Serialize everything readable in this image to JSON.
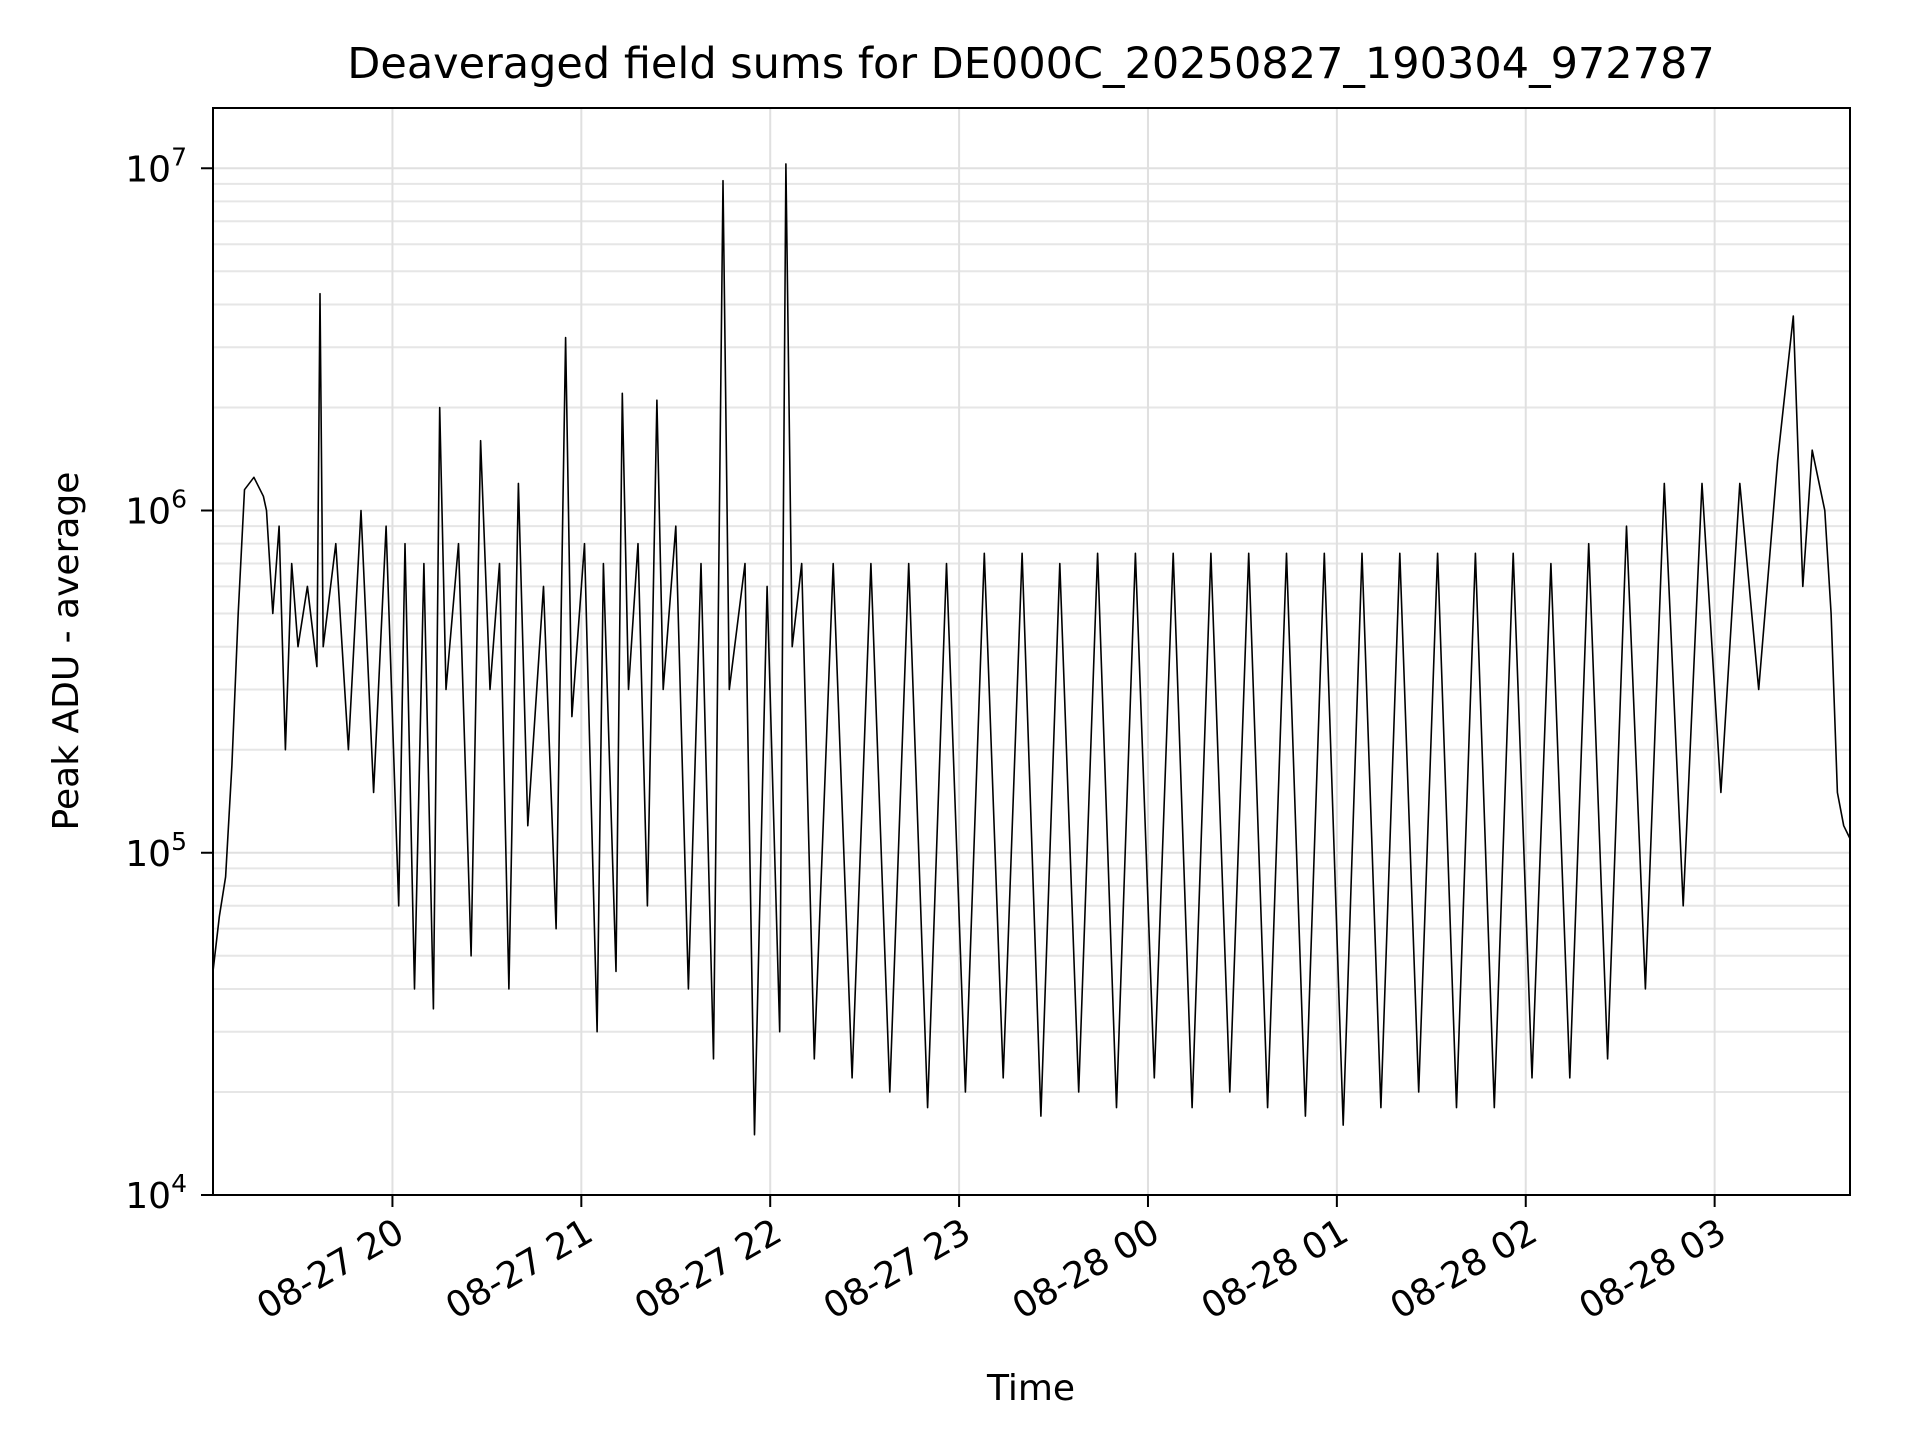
{
  "chart_data": {
    "type": "line",
    "title": "Deaveraged field sums for DE000C_20250827_190304_972787",
    "xlabel": "Time",
    "ylabel": "Peak ADU - average",
    "x_axis": {
      "type": "time",
      "range": [
        "2025-08-27 19:03",
        "2025-08-28 03:43"
      ],
      "ticks": [
        "2025-08-27 20:00",
        "2025-08-27 21:00",
        "2025-08-27 22:00",
        "2025-08-27 23:00",
        "2025-08-28 00:00",
        "2025-08-28 01:00",
        "2025-08-28 02:00",
        "2025-08-28 03:00"
      ],
      "tick_labels": [
        "08-27 20",
        "08-27 21",
        "08-27 22",
        "08-27 23",
        "08-28 00",
        "08-28 01",
        "08-28 02",
        "08-28 03"
      ]
    },
    "y_axis": {
      "scale": "log",
      "range": [
        10000,
        15000000
      ],
      "ticks": [
        10000,
        100000,
        1000000,
        10000000
      ],
      "tick_labels": [
        {
          "base": "10",
          "exp": "4"
        },
        {
          "base": "10",
          "exp": "5"
        },
        {
          "base": "10",
          "exp": "6"
        },
        {
          "base": "10",
          "exp": "7"
        }
      ]
    },
    "grid": true,
    "grid_minor": true,
    "line_color": "#000000",
    "series": [
      {
        "points": [
          [
            "2025-08-27 19:03",
            45000
          ],
          [
            "2025-08-27 19:05",
            65000
          ],
          [
            "2025-08-27 19:07",
            85000
          ],
          [
            "2025-08-27 19:09",
            180000
          ],
          [
            "2025-08-27 19:11",
            500000
          ],
          [
            "2025-08-27 19:13",
            1150000
          ],
          [
            "2025-08-27 19:16",
            1250000
          ],
          [
            "2025-08-27 19:19",
            1100000
          ],
          [
            "2025-08-27 19:20",
            1000000
          ],
          [
            "2025-08-27 19:22",
            500000
          ],
          [
            "2025-08-27 19:24",
            900000
          ],
          [
            "2025-08-27 19:26",
            200000
          ],
          [
            "2025-08-27 19:28",
            700000
          ],
          [
            "2025-08-27 19:30",
            400000
          ],
          [
            "2025-08-27 19:33",
            600000
          ],
          [
            "2025-08-27 19:36",
            350000
          ],
          [
            "2025-08-27 19:37",
            4300000
          ],
          [
            "2025-08-27 19:38",
            400000
          ],
          [
            "2025-08-27 19:42",
            800000
          ],
          [
            "2025-08-27 19:46",
            200000
          ],
          [
            "2025-08-27 19:50",
            1000000
          ],
          [
            "2025-08-27 19:54",
            150000
          ],
          [
            "2025-08-27 19:58",
            900000
          ],
          [
            "2025-08-27 20:02",
            70000
          ],
          [
            "2025-08-27 20:04",
            800000
          ],
          [
            "2025-08-27 20:07",
            40000
          ],
          [
            "2025-08-27 20:10",
            700000
          ],
          [
            "2025-08-27 20:13",
            35000
          ],
          [
            "2025-08-27 20:15",
            2000000
          ],
          [
            "2025-08-27 20:17",
            300000
          ],
          [
            "2025-08-27 20:21",
            800000
          ],
          [
            "2025-08-27 20:25",
            50000
          ],
          [
            "2025-08-27 20:28",
            1600000
          ],
          [
            "2025-08-27 20:31",
            300000
          ],
          [
            "2025-08-27 20:34",
            700000
          ],
          [
            "2025-08-27 20:37",
            40000
          ],
          [
            "2025-08-27 20:40",
            1200000
          ],
          [
            "2025-08-27 20:43",
            120000
          ],
          [
            "2025-08-27 20:48",
            600000
          ],
          [
            "2025-08-27 20:52",
            60000
          ],
          [
            "2025-08-27 20:55",
            3200000
          ],
          [
            "2025-08-27 20:57",
            250000
          ],
          [
            "2025-08-27 21:01",
            800000
          ],
          [
            "2025-08-27 21:05",
            30000
          ],
          [
            "2025-08-27 21:07",
            700000
          ],
          [
            "2025-08-27 21:11",
            45000
          ],
          [
            "2025-08-27 21:13",
            2200000
          ],
          [
            "2025-08-27 21:15",
            300000
          ],
          [
            "2025-08-27 21:18",
            800000
          ],
          [
            "2025-08-27 21:21",
            70000
          ],
          [
            "2025-08-27 21:24",
            2100000
          ],
          [
            "2025-08-27 21:26",
            300000
          ],
          [
            "2025-08-27 21:30",
            900000
          ],
          [
            "2025-08-27 21:34",
            40000
          ],
          [
            "2025-08-27 21:38",
            700000
          ],
          [
            "2025-08-27 21:42",
            25000
          ],
          [
            "2025-08-27 21:45",
            9200000
          ],
          [
            "2025-08-27 21:47",
            300000
          ],
          [
            "2025-08-27 21:52",
            700000
          ],
          [
            "2025-08-27 21:55",
            15000
          ],
          [
            "2025-08-27 21:59",
            600000
          ],
          [
            "2025-08-27 22:03",
            30000
          ],
          [
            "2025-08-27 22:05",
            10300000
          ],
          [
            "2025-08-27 22:07",
            400000
          ],
          [
            "2025-08-27 22:10",
            700000
          ],
          [
            "2025-08-27 22:14",
            25000
          ],
          [
            "2025-08-27 22:20",
            700000
          ],
          [
            "2025-08-27 22:26",
            22000
          ],
          [
            "2025-08-27 22:32",
            700000
          ],
          [
            "2025-08-27 22:38",
            20000
          ],
          [
            "2025-08-27 22:44",
            700000
          ],
          [
            "2025-08-27 22:50",
            18000
          ],
          [
            "2025-08-27 22:56",
            700000
          ],
          [
            "2025-08-27 23:02",
            20000
          ],
          [
            "2025-08-27 23:08",
            750000
          ],
          [
            "2025-08-27 23:14",
            22000
          ],
          [
            "2025-08-27 23:20",
            750000
          ],
          [
            "2025-08-27 23:26",
            17000
          ],
          [
            "2025-08-27 23:32",
            700000
          ],
          [
            "2025-08-27 23:38",
            20000
          ],
          [
            "2025-08-27 23:44",
            750000
          ],
          [
            "2025-08-27 23:50",
            18000
          ],
          [
            "2025-08-27 23:56",
            750000
          ],
          [
            "2025-08-28 00:02",
            22000
          ],
          [
            "2025-08-28 00:08",
            750000
          ],
          [
            "2025-08-28 00:14",
            18000
          ],
          [
            "2025-08-28 00:20",
            750000
          ],
          [
            "2025-08-28 00:26",
            20000
          ],
          [
            "2025-08-28 00:32",
            750000
          ],
          [
            "2025-08-28 00:38",
            18000
          ],
          [
            "2025-08-28 00:44",
            750000
          ],
          [
            "2025-08-28 00:50",
            17000
          ],
          [
            "2025-08-28 00:56",
            750000
          ],
          [
            "2025-08-28 01:02",
            16000
          ],
          [
            "2025-08-28 01:08",
            750000
          ],
          [
            "2025-08-28 01:14",
            18000
          ],
          [
            "2025-08-28 01:20",
            750000
          ],
          [
            "2025-08-28 01:26",
            20000
          ],
          [
            "2025-08-28 01:32",
            750000
          ],
          [
            "2025-08-28 01:38",
            18000
          ],
          [
            "2025-08-28 01:44",
            750000
          ],
          [
            "2025-08-28 01:50",
            18000
          ],
          [
            "2025-08-28 01:56",
            750000
          ],
          [
            "2025-08-28 02:02",
            22000
          ],
          [
            "2025-08-28 02:08",
            700000
          ],
          [
            "2025-08-28 02:14",
            22000
          ],
          [
            "2025-08-28 02:20",
            800000
          ],
          [
            "2025-08-28 02:26",
            25000
          ],
          [
            "2025-08-28 02:32",
            900000
          ],
          [
            "2025-08-28 02:38",
            40000
          ],
          [
            "2025-08-28 02:44",
            1200000
          ],
          [
            "2025-08-28 02:50",
            70000
          ],
          [
            "2025-08-28 02:56",
            1200000
          ],
          [
            "2025-08-28 03:02",
            150000
          ],
          [
            "2025-08-28 03:08",
            1200000
          ],
          [
            "2025-08-28 03:14",
            300000
          ],
          [
            "2025-08-28 03:20",
            1400000
          ],
          [
            "2025-08-28 03:25",
            3700000
          ],
          [
            "2025-08-28 03:28",
            600000
          ],
          [
            "2025-08-28 03:31",
            1500000
          ],
          [
            "2025-08-28 03:35",
            1000000
          ],
          [
            "2025-08-28 03:37",
            500000
          ],
          [
            "2025-08-28 03:39",
            150000
          ],
          [
            "2025-08-28 03:41",
            120000
          ],
          [
            "2025-08-28 03:43",
            110000
          ]
        ]
      }
    ]
  }
}
